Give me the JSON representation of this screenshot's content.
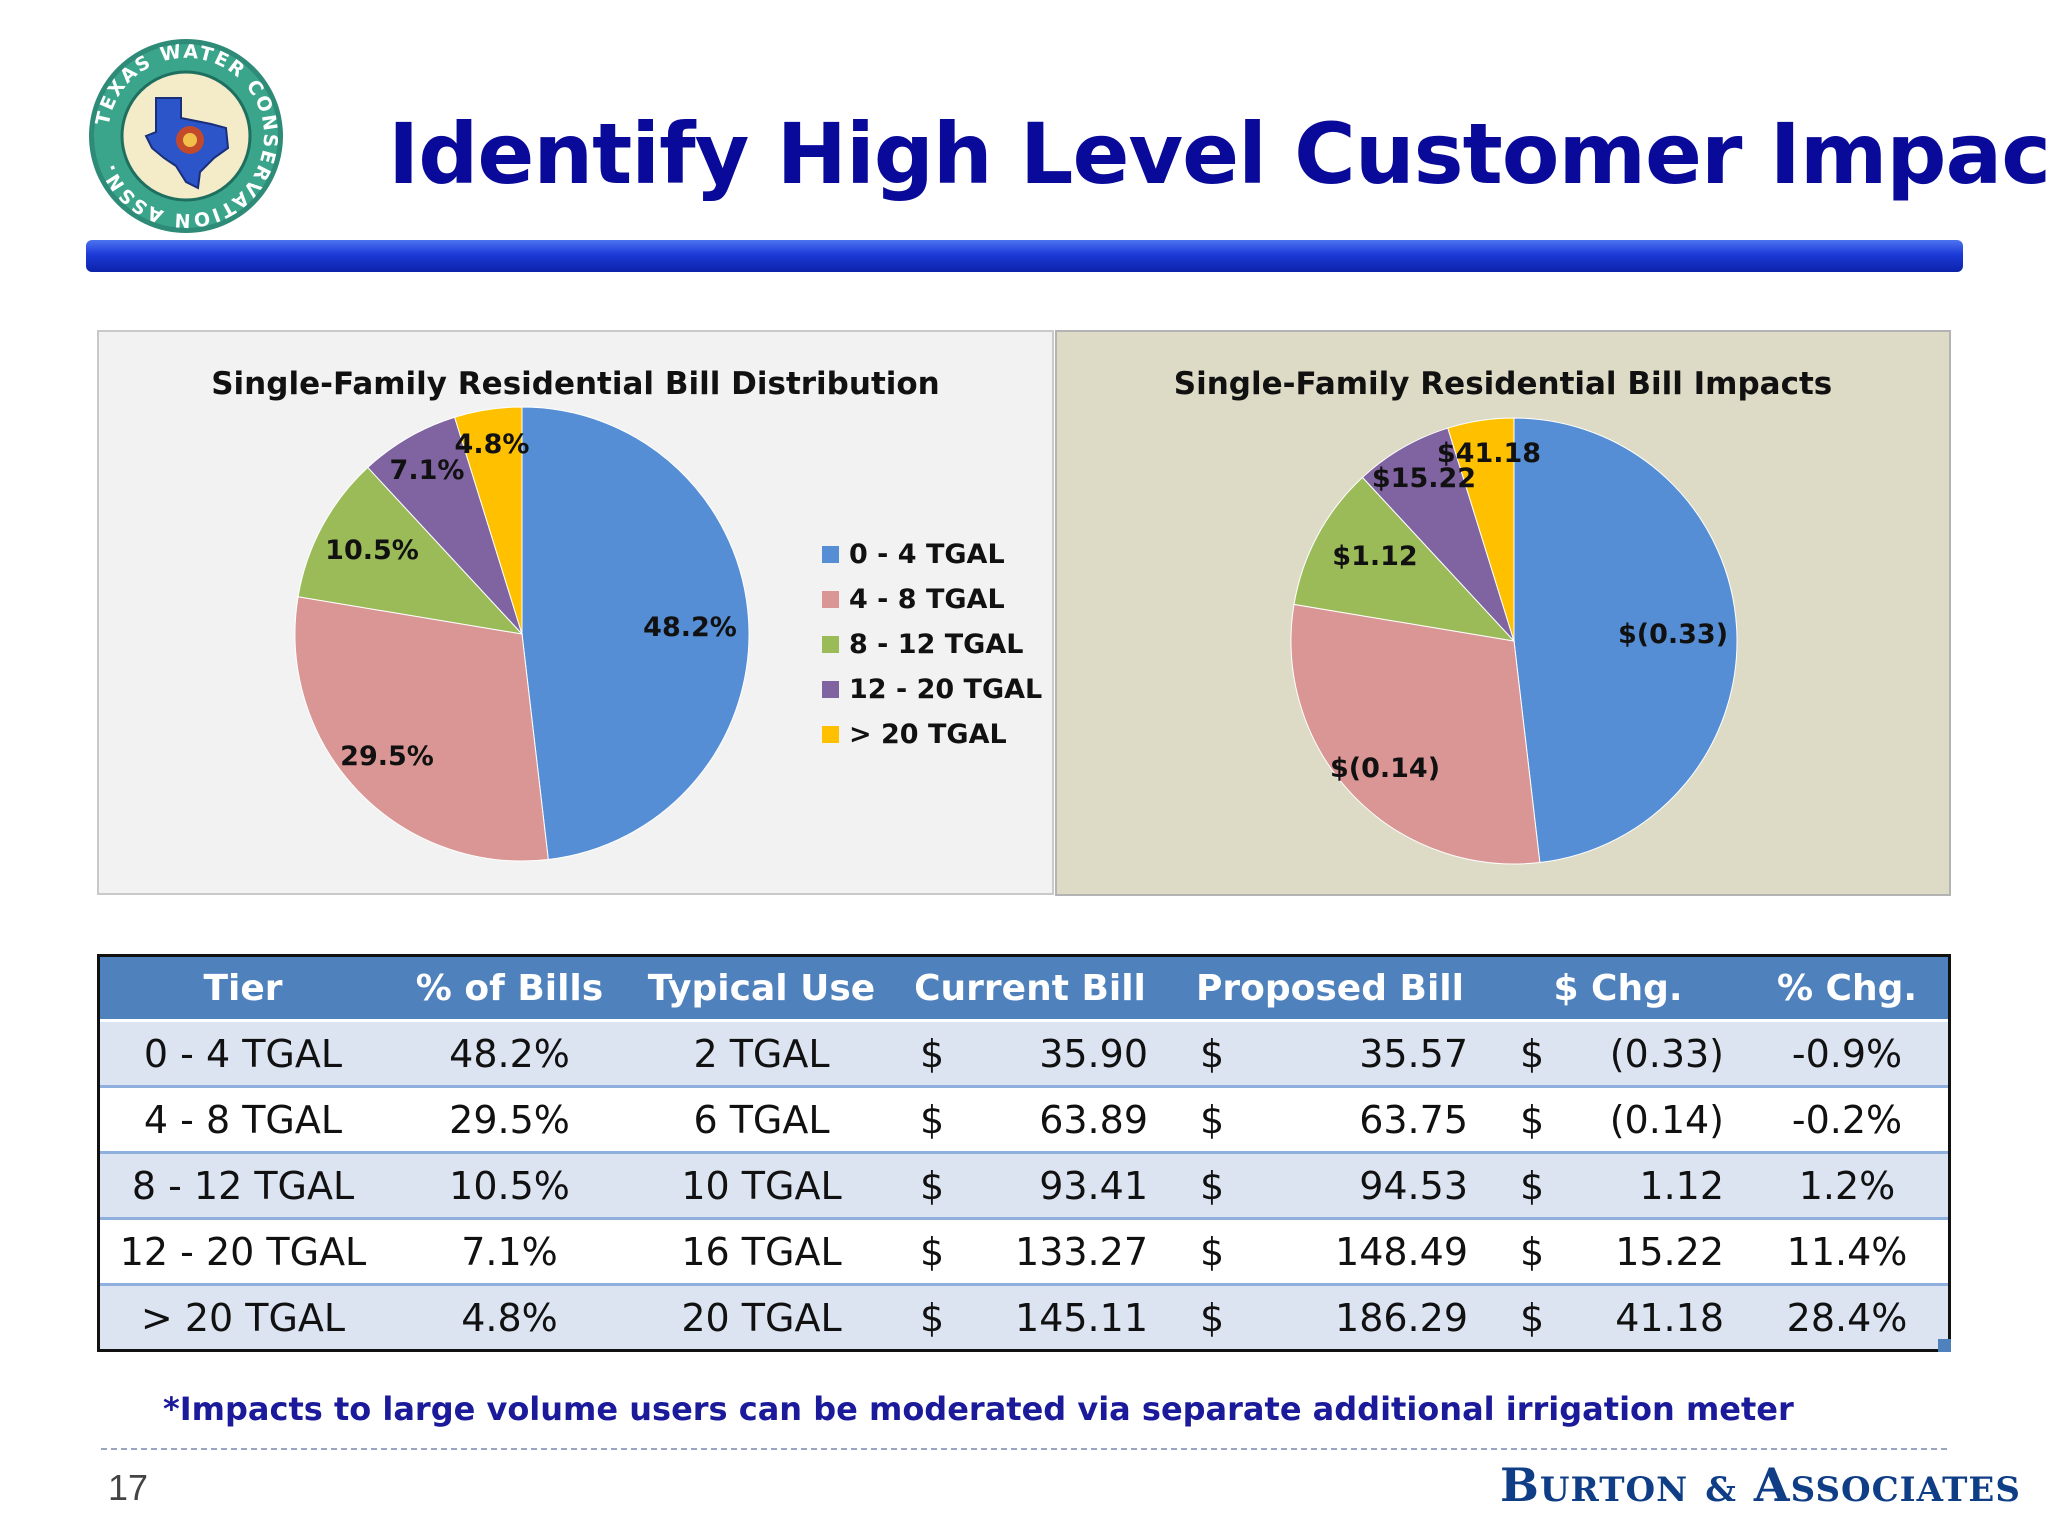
{
  "slide": {
    "title": "Identify High Level Customer Impacts",
    "page_number": "17",
    "footnote": "*Impacts to large volume users can be moderated via separate additional irrigation meter",
    "brand": "Burton & Associates",
    "logo_text": "TEXAS WATER CONSERVATION ASSN."
  },
  "colors": {
    "title": "#0a0a9a",
    "series": [
      "#558ed5",
      "#d99694",
      "#9bbb59",
      "#8064a2",
      "#ffc000"
    ],
    "table_header": "#4f81bd",
    "table_band": "#dce4f1"
  },
  "chart_data": [
    {
      "type": "pie",
      "title": "Single-Family Residential Bill Distribution",
      "categories": [
        "0 - 4 TGAL",
        "4 - 8 TGAL",
        "8 - 12 TGAL",
        "12 - 20 TGAL",
        "> 20 TGAL"
      ],
      "values": [
        48.2,
        29.5,
        10.5,
        7.1,
        4.8
      ],
      "data_labels": [
        "48.2%",
        "29.5%",
        "10.5%",
        "7.1%",
        "4.8%"
      ],
      "legend": "right"
    },
    {
      "type": "pie",
      "title": "Single-Family Residential Bill Impacts",
      "categories": [
        "0 - 4 TGAL",
        "4 - 8 TGAL",
        "8 - 12 TGAL",
        "12 - 20 TGAL",
        "> 20 TGAL"
      ],
      "values": [
        48.2,
        29.5,
        10.5,
        7.1,
        4.8
      ],
      "data_labels": [
        "$(0.33)",
        "$(0.14)",
        "$1.12",
        "$15.22",
        "$41.18"
      ],
      "legend": "none"
    }
  ],
  "table": {
    "headers": [
      "Tier",
      "% of Bills",
      "Typical Use",
      "Current Bill",
      "Proposed Bill",
      "$ Chg.",
      "% Chg."
    ],
    "rows": [
      {
        "tier": "0 - 4 TGAL",
        "pct_bills": "48.2%",
        "typical_use": "2 TGAL",
        "current_sym": "$",
        "current": "35.90",
        "proposed_sym": "$",
        "proposed": "35.57",
        "chg_sym": "$",
        "chg": "(0.33)",
        "pct_chg": "-0.9%"
      },
      {
        "tier": "4 - 8 TGAL",
        "pct_bills": "29.5%",
        "typical_use": "6 TGAL",
        "current_sym": "$",
        "current": "63.89",
        "proposed_sym": "$",
        "proposed": "63.75",
        "chg_sym": "$",
        "chg": "(0.14)",
        "pct_chg": "-0.2%"
      },
      {
        "tier": "8 - 12 TGAL",
        "pct_bills": "10.5%",
        "typical_use": "10 TGAL",
        "current_sym": "$",
        "current": "93.41",
        "proposed_sym": "$",
        "proposed": "94.53",
        "chg_sym": "$",
        "chg": "1.12",
        "pct_chg": "1.2%"
      },
      {
        "tier": "12 - 20 TGAL",
        "pct_bills": "7.1%",
        "typical_use": "16 TGAL",
        "current_sym": "$",
        "current": "133.27",
        "proposed_sym": "$",
        "proposed": "148.49",
        "chg_sym": "$",
        "chg": "15.22",
        "pct_chg": "11.4%"
      },
      {
        "tier": "> 20 TGAL",
        "pct_bills": "4.8%",
        "typical_use": "20 TGAL",
        "current_sym": "$",
        "current": "145.11",
        "proposed_sym": "$",
        "proposed": "186.29",
        "chg_sym": "$",
        "chg": "41.18",
        "pct_chg": "28.4%"
      }
    ]
  }
}
